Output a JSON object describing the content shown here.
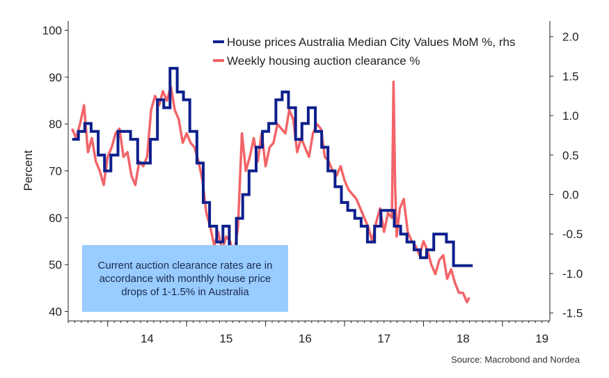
{
  "chart_data": {
    "type": "line",
    "ylabel": "Percent",
    "y_left_range": [
      38,
      102
    ],
    "y_left_ticks": [
      "100",
      "90",
      "80",
      "70",
      "60",
      "50",
      "40"
    ],
    "y_right_range": [
      -1.6,
      2.2
    ],
    "y_right_ticks": [
      "2.0",
      "1.5",
      "1.0",
      "0.5",
      "0.0",
      "-0.5",
      "-1.0",
      "-1.5"
    ],
    "x_range": [
      2013.5,
      2019.6
    ],
    "x_ticks": [
      "14",
      "15",
      "16",
      "17",
      "18",
      "19"
    ],
    "legend_position": "top-right",
    "annotation": "Current auction clearance rates are in accordance with monthly house price drops of 1-1.5% in Australia",
    "source": "Source: Macrobond and Nordea",
    "series": [
      {
        "name": "House prices Australia Median City Values MoM %, rhs",
        "axis": "right",
        "color": "#0d1f8c",
        "step": true,
        "x": [
          2013.55,
          2013.63,
          2013.71,
          2013.79,
          2013.88,
          2013.96,
          2014.04,
          2014.13,
          2014.21,
          2014.29,
          2014.38,
          2014.46,
          2014.54,
          2014.63,
          2014.71,
          2014.79,
          2014.88,
          2014.96,
          2015.04,
          2015.13,
          2015.21,
          2015.29,
          2015.38,
          2015.46,
          2015.54,
          2015.63,
          2015.71,
          2015.79,
          2015.88,
          2015.96,
          2016.04,
          2016.13,
          2016.21,
          2016.29,
          2016.38,
          2016.46,
          2016.54,
          2016.63,
          2016.71,
          2016.79,
          2016.88,
          2016.96,
          2017.04,
          2017.13,
          2017.21,
          2017.29,
          2017.38,
          2017.46,
          2017.54,
          2017.63,
          2017.71,
          2017.79,
          2017.88,
          2017.96,
          2018.04,
          2018.13,
          2018.21,
          2018.29,
          2018.38,
          2018.46,
          2018.54
        ],
        "y": [
          0.7,
          0.8,
          0.9,
          0.8,
          0.5,
          0.3,
          0.5,
          0.8,
          0.8,
          0.7,
          0.4,
          0.4,
          0.7,
          1.2,
          1.1,
          1.6,
          1.3,
          1.2,
          0.8,
          0.4,
          -0.1,
          -0.4,
          -0.6,
          -0.4,
          -0.8,
          -0.3,
          0.0,
          0.3,
          0.6,
          0.8,
          0.9,
          1.2,
          1.3,
          1.1,
          0.7,
          0.9,
          1.1,
          0.8,
          0.6,
          0.3,
          0.1,
          -0.1,
          -0.2,
          -0.3,
          -0.4,
          -0.6,
          -0.4,
          -0.2,
          -0.2,
          -0.4,
          -0.5,
          -0.6,
          -0.7,
          -0.8,
          -0.7,
          -0.5,
          -0.5,
          -0.6,
          -0.9,
          -0.9,
          -0.9
        ]
      },
      {
        "name": "Weekly housing auction clearance %",
        "axis": "left",
        "color": "#f26468",
        "step": false,
        "x": [
          2013.55,
          2013.6,
          2013.65,
          2013.7,
          2013.75,
          2013.8,
          2013.85,
          2013.9,
          2013.95,
          2014.0,
          2014.05,
          2014.1,
          2014.15,
          2014.2,
          2014.25,
          2014.3,
          2014.35,
          2014.4,
          2014.45,
          2014.5,
          2014.55,
          2014.6,
          2014.65,
          2014.7,
          2014.75,
          2014.8,
          2014.85,
          2014.9,
          2014.95,
          2015.0,
          2015.05,
          2015.1,
          2015.15,
          2015.2,
          2015.25,
          2015.3,
          2015.35,
          2015.4,
          2015.45,
          2015.5,
          2015.55,
          2015.6,
          2015.65,
          2015.7,
          2015.75,
          2015.8,
          2015.85,
          2015.9,
          2015.95,
          2016.0,
          2016.05,
          2016.1,
          2016.15,
          2016.2,
          2016.25,
          2016.3,
          2016.35,
          2016.4,
          2016.45,
          2016.5,
          2016.55,
          2016.6,
          2016.65,
          2016.7,
          2016.75,
          2016.8,
          2016.85,
          2016.9,
          2016.95,
          2017.0,
          2017.05,
          2017.1,
          2017.15,
          2017.2,
          2017.25,
          2017.3,
          2017.35,
          2017.4,
          2017.45,
          2017.5,
          2017.55,
          2017.6,
          2017.62,
          2017.64,
          2017.66,
          2017.7,
          2017.75,
          2017.8,
          2017.85,
          2017.9,
          2017.95,
          2018.0,
          2018.05,
          2018.1,
          2018.15,
          2018.2,
          2018.25,
          2018.3,
          2018.35,
          2018.4,
          2018.45,
          2018.5,
          2018.55,
          2018.58
        ],
        "y": [
          79,
          77,
          80,
          84,
          74,
          77,
          72,
          70,
          67,
          73,
          75,
          78,
          79,
          73,
          74,
          69,
          67,
          72,
          71,
          73,
          83,
          86,
          84,
          87,
          85,
          88,
          83,
          81,
          76,
          78,
          76,
          75,
          72,
          68,
          61,
          58,
          54,
          57,
          53,
          56,
          55,
          52,
          58,
          78,
          70,
          73,
          77,
          72,
          78,
          71,
          75,
          76,
          80,
          79,
          78,
          83,
          81,
          74,
          77,
          75,
          73,
          78,
          80,
          79,
          73,
          72,
          70,
          69,
          71,
          68,
          66,
          65,
          64,
          62,
          60,
          58,
          55,
          59,
          62,
          57,
          61,
          60,
          89,
          67,
          56,
          62,
          64,
          57,
          55,
          54,
          52,
          55,
          53,
          50,
          48,
          51,
          52,
          47,
          49,
          46,
          44,
          44,
          42,
          43
        ]
      }
    ]
  }
}
